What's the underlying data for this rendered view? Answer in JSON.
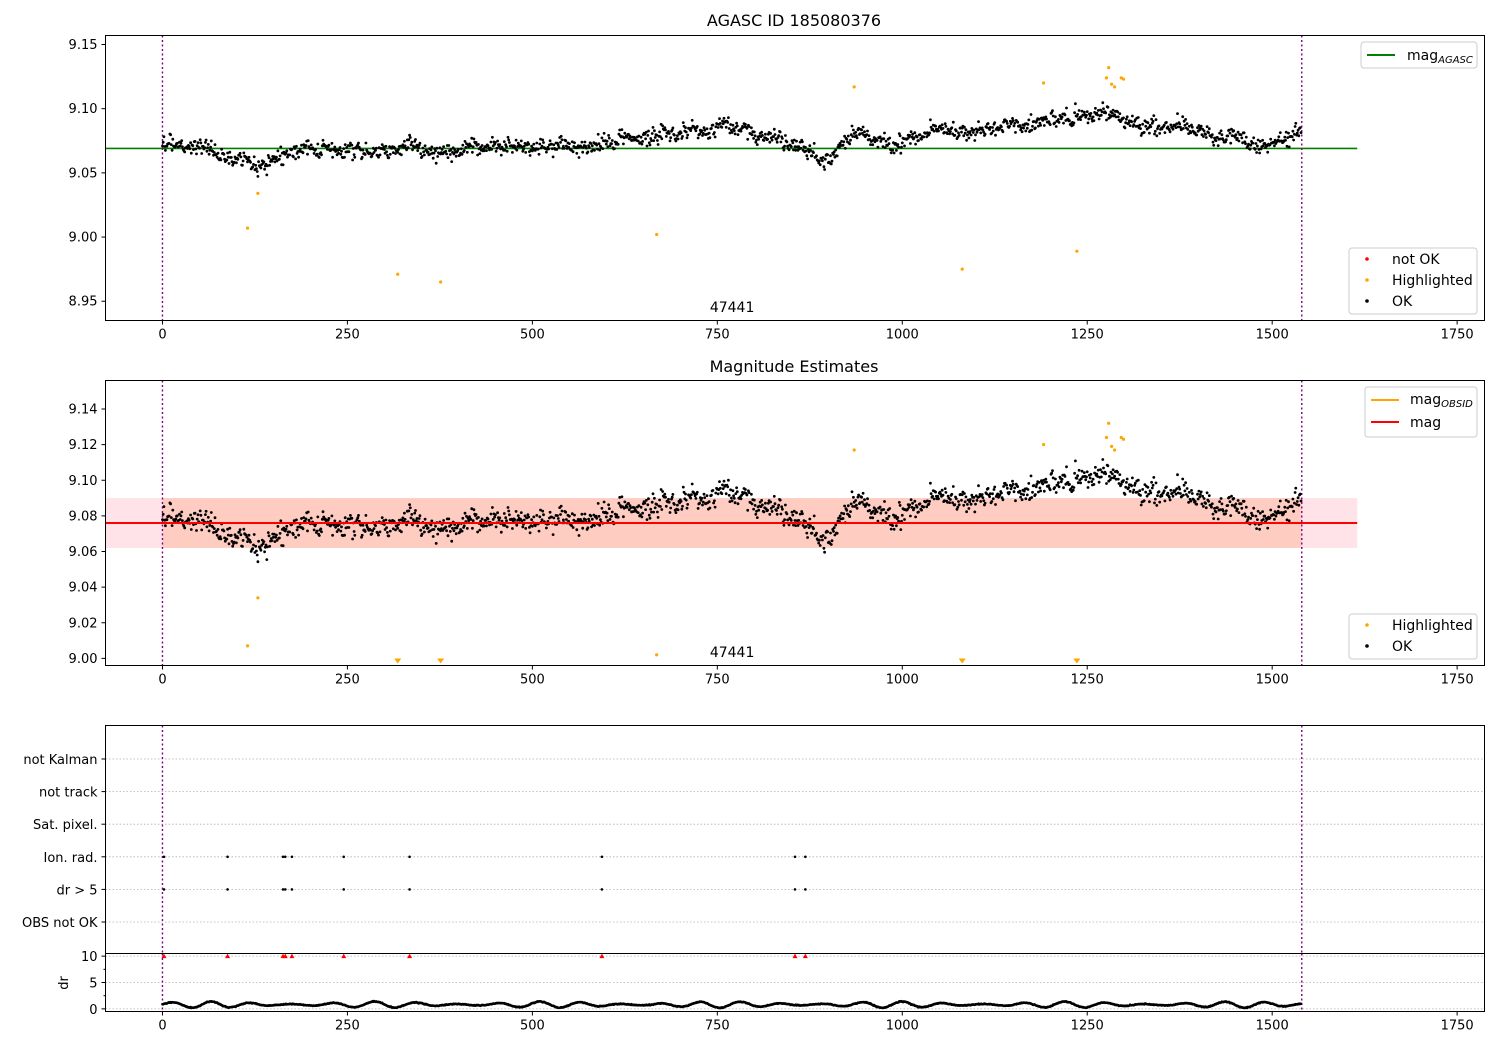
{
  "colors": {
    "ok": "#000000",
    "highlighted": "#ffa500",
    "not_ok": "#ff0000",
    "mag_agasc": "#008000",
    "mag": "#ff0000",
    "mag_obsid": "#ffa500",
    "obsid_boundary": "#800080",
    "band_outer": "#ffc0cb",
    "band_inner": "#ffa07a",
    "grid": "#b0b0b0"
  },
  "chart_data": [
    {
      "type": "scatter",
      "title": "AGASC ID 185080376",
      "xlim": [
        -77,
        1787
      ],
      "ylim": [
        8.935,
        9.157
      ],
      "x_ticks": [
        0,
        250,
        500,
        750,
        1000,
        1250,
        1500,
        1750
      ],
      "y_ticks": [
        8.95,
        9.0,
        9.05,
        9.1,
        9.15
      ],
      "y_tick_labels": [
        "8.95",
        "9.00",
        "9.05",
        "9.10",
        "9.15"
      ],
      "obsid_boundaries": [
        0,
        1540
      ],
      "annotation": {
        "text": "47441",
        "x": 770
      },
      "mag_agasc": {
        "value": 9.069,
        "x_range": [
          -77,
          1615
        ]
      },
      "legend_upper": [
        {
          "label": "mag",
          "subscript": "AGASC",
          "marker": "line",
          "color_key": "mag_agasc"
        }
      ],
      "legend_lower": [
        {
          "label": "not OK",
          "marker": "dot",
          "color_key": "not_ok"
        },
        {
          "label": "Highlighted",
          "marker": "dot",
          "color_key": "highlighted"
        },
        {
          "label": "OK",
          "marker": "dot",
          "color_key": "ok"
        }
      ],
      "ok_series": {
        "n_points": 1540,
        "trend": [
          [
            0,
            9.074
          ],
          [
            40,
            9.071
          ],
          [
            80,
            9.067
          ],
          [
            110,
            9.062
          ],
          [
            135,
            9.055
          ],
          [
            160,
            9.062
          ],
          [
            200,
            9.072
          ],
          [
            250,
            9.068
          ],
          [
            300,
            9.066
          ],
          [
            340,
            9.068
          ],
          [
            380,
            9.063
          ],
          [
            420,
            9.068
          ],
          [
            480,
            9.072
          ],
          [
            560,
            9.07
          ],
          [
            620,
            9.078
          ],
          [
            700,
            9.084
          ],
          [
            760,
            9.085
          ],
          [
            820,
            9.078
          ],
          [
            860,
            9.072
          ],
          [
            895,
            9.058
          ],
          [
            930,
            9.08
          ],
          [
            1000,
            9.075
          ],
          [
            1040,
            9.085
          ],
          [
            1080,
            9.08
          ],
          [
            1150,
            9.088
          ],
          [
            1220,
            9.091
          ],
          [
            1280,
            9.1
          ],
          [
            1320,
            9.086
          ],
          [
            1380,
            9.087
          ],
          [
            1420,
            9.075
          ],
          [
            1500,
            9.07
          ],
          [
            1540,
            9.082
          ]
        ],
        "scatter": 0.011
      },
      "highlighted_points": [
        {
          "x": 115,
          "y": 9.007
        },
        {
          "x": 129,
          "y": 9.034
        },
        {
          "x": 318,
          "y": 8.971
        },
        {
          "x": 376,
          "y": 8.965
        },
        {
          "x": 668,
          "y": 9.002
        },
        {
          "x": 935,
          "y": 9.117
        },
        {
          "x": 1081,
          "y": 8.975
        },
        {
          "x": 1191,
          "y": 9.12
        },
        {
          "x": 1236,
          "y": 8.989
        },
        {
          "x": 1276,
          "y": 9.124
        },
        {
          "x": 1279,
          "y": 9.132
        },
        {
          "x": 1283,
          "y": 9.119
        },
        {
          "x": 1287,
          "y": 9.117
        },
        {
          "x": 1296,
          "y": 9.124
        },
        {
          "x": 1299,
          "y": 9.123
        }
      ],
      "not_ok_points": []
    },
    {
      "type": "scatter",
      "title": "Magnitude Estimates",
      "xlim": [
        -77,
        1787
      ],
      "ylim": [
        8.996,
        9.156
      ],
      "x_ticks": [
        0,
        250,
        500,
        750,
        1000,
        1250,
        1500,
        1750
      ],
      "y_ticks": [
        9.0,
        9.02,
        9.04,
        9.06,
        9.08,
        9.1,
        9.12,
        9.14
      ],
      "y_tick_labels": [
        "9.00",
        "9.02",
        "9.04",
        "9.06",
        "9.08",
        "9.10",
        "9.12",
        "9.14"
      ],
      "obsid_boundaries": [
        0,
        1540
      ],
      "annotation": {
        "text": "47441",
        "x": 770
      },
      "mag": {
        "value": 9.076,
        "x_range": [
          -77,
          1615
        ]
      },
      "mag_obsid": {
        "value": 9.076,
        "x_range": [
          0,
          1540
        ]
      },
      "band_outer": {
        "low": 9.062,
        "high": 9.09,
        "x_range": [
          -77,
          1615
        ]
      },
      "band_inner": {
        "low": 9.062,
        "high": 9.09,
        "x_range": [
          0,
          1540
        ]
      },
      "legend_upper": [
        {
          "label": "mag",
          "subscript": "OBSID",
          "marker": "line",
          "color_key": "mag_obsid"
        },
        {
          "label": "mag",
          "marker": "line",
          "color_key": "mag"
        }
      ],
      "legend_lower": [
        {
          "label": "Highlighted",
          "marker": "dot",
          "color_key": "highlighted"
        },
        {
          "label": "OK",
          "marker": "dot",
          "color_key": "ok"
        }
      ],
      "highlighted_points": [
        {
          "x": 115,
          "y": 9.007
        },
        {
          "x": 129,
          "y": 9.034
        },
        {
          "x": 668,
          "y": 9.002
        },
        {
          "x": 935,
          "y": 9.117
        },
        {
          "x": 1191,
          "y": 9.12
        },
        {
          "x": 1276,
          "y": 9.124
        },
        {
          "x": 1279,
          "y": 9.132
        },
        {
          "x": 1283,
          "y": 9.119
        },
        {
          "x": 1287,
          "y": 9.117
        },
        {
          "x": 1296,
          "y": 9.124
        },
        {
          "x": 1299,
          "y": 9.123
        }
      ],
      "clipped_low_points": [
        {
          "x": 318
        },
        {
          "x": 376
        },
        {
          "x": 1081
        },
        {
          "x": 1236
        }
      ]
    },
    {
      "type": "scatter",
      "title": "",
      "xlim": [
        -77,
        1787
      ],
      "x_ticks": [
        0,
        250,
        500,
        750,
        1000,
        1250,
        1500,
        1750
      ],
      "obsid_boundaries": [
        0,
        1540
      ],
      "flag_rows": [
        "not Kalman",
        "not track",
        "Sat. pixel.",
        "Ion. rad.",
        "dr > 5",
        "OBS not OK"
      ],
      "flag_events": {
        "Ion. rad.": [
          2,
          88,
          163,
          166,
          175,
          245,
          334,
          594,
          855,
          869
        ],
        "dr > 5": [
          2,
          88,
          163,
          166,
          175,
          245,
          334,
          594,
          855,
          869
        ]
      }
    },
    {
      "type": "scatter",
      "title": "",
      "ylabel": "dr",
      "xlim": [
        -77,
        1787
      ],
      "ylim": [
        -0.5,
        10.5
      ],
      "x_ticks": [
        0,
        250,
        500,
        750,
        1000,
        1250,
        1500,
        1750
      ],
      "y_ticks": [
        0,
        5,
        10
      ],
      "y_tick_labels": [
        "0",
        "5",
        "10"
      ],
      "obsid_boundaries": [
        0,
        1540
      ],
      "dr_series": {
        "n_points": 1540,
        "mean": 0.8,
        "amplitude": 0.6
      },
      "clipped_high_points": [
        2,
        88,
        163,
        166,
        175,
        245,
        334,
        594,
        855,
        869
      ]
    }
  ]
}
